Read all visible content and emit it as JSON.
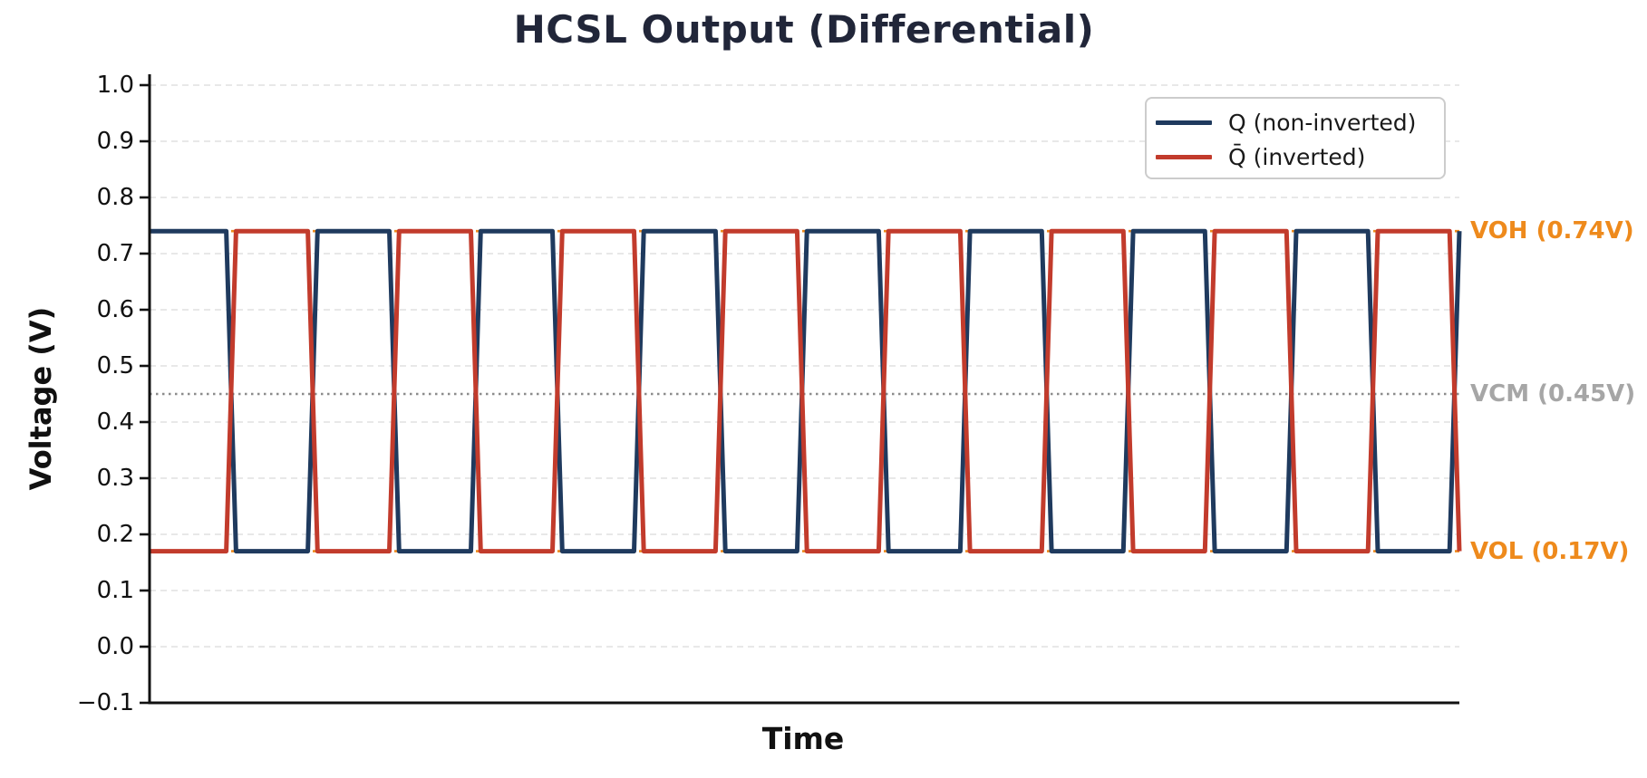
{
  "chart_data": {
    "type": "line",
    "title": "HCSL Output (Differential)",
    "xlabel": "Time",
    "ylabel": "Voltage (V)",
    "ylim": [
      -0.1,
      1.0
    ],
    "xrange": [
      0,
      16.06
    ],
    "x_units": "half-periods (no x tick labels shown)",
    "grid": "horizontal light dashed lines at every 0.1 V",
    "legend_position": "upper right",
    "ytick_values": [
      1.0,
      0.9,
      0.8,
      0.7,
      0.6,
      0.5,
      0.4,
      0.3,
      0.2,
      0.1,
      0.0,
      -0.1
    ],
    "ytick_labels": [
      "1.0",
      "0.9",
      "0.8",
      "0.7",
      "0.6",
      "0.5",
      "0.4",
      "0.3",
      "0.2",
      "0.1",
      "0.0",
      "−0.1"
    ],
    "ygrid_values": [
      0.0,
      0.1,
      0.2,
      0.3,
      0.4,
      0.5,
      0.6,
      0.7,
      0.8,
      0.9,
      1.0
    ],
    "levels": {
      "VOH": 0.74,
      "VCM": 0.45,
      "VOL": 0.17
    },
    "cycles": 8,
    "reference_lines": [
      {
        "label": "VOH (0.74V)",
        "value": 0.74,
        "style": "dashed",
        "color": "#ee8a1c"
      },
      {
        "label": "VCM (0.45V)",
        "value": 0.45,
        "style": "dotted",
        "color": "#8c8c8c",
        "label_color": "#a6a6a6"
      },
      {
        "label": "VOL (0.17V)",
        "value": 0.17,
        "style": "dashed",
        "color": "#ee8a1c"
      }
    ],
    "series": [
      {
        "name": "Q (non-inverted)",
        "color": "#1f3a5e",
        "points": [
          [
            0,
            0.74
          ],
          [
            0.94,
            0.74
          ],
          [
            1.06,
            0.17
          ],
          [
            1.94,
            0.17
          ],
          [
            2.06,
            0.74
          ],
          [
            2.94,
            0.74
          ],
          [
            3.06,
            0.17
          ],
          [
            3.94,
            0.17
          ],
          [
            4.06,
            0.74
          ],
          [
            4.94,
            0.74
          ],
          [
            5.06,
            0.17
          ],
          [
            5.94,
            0.17
          ],
          [
            6.06,
            0.74
          ],
          [
            6.94,
            0.74
          ],
          [
            7.06,
            0.17
          ],
          [
            7.94,
            0.17
          ],
          [
            8.06,
            0.74
          ],
          [
            8.94,
            0.74
          ],
          [
            9.06,
            0.17
          ],
          [
            9.94,
            0.17
          ],
          [
            10.06,
            0.74
          ],
          [
            10.94,
            0.74
          ],
          [
            11.06,
            0.17
          ],
          [
            11.94,
            0.17
          ],
          [
            12.06,
            0.74
          ],
          [
            12.94,
            0.74
          ],
          [
            13.06,
            0.17
          ],
          [
            13.94,
            0.17
          ],
          [
            14.06,
            0.74
          ],
          [
            14.94,
            0.74
          ],
          [
            15.06,
            0.17
          ],
          [
            15.94,
            0.17
          ],
          [
            16.06,
            0.74
          ]
        ]
      },
      {
        "name": "Q̄ (inverted)",
        "color": "#c23b2c",
        "points": [
          [
            0,
            0.17
          ],
          [
            0.94,
            0.17
          ],
          [
            1.06,
            0.74
          ],
          [
            1.94,
            0.74
          ],
          [
            2.06,
            0.17
          ],
          [
            2.94,
            0.17
          ],
          [
            3.06,
            0.74
          ],
          [
            3.94,
            0.74
          ],
          [
            4.06,
            0.17
          ],
          [
            4.94,
            0.17
          ],
          [
            5.06,
            0.74
          ],
          [
            5.94,
            0.74
          ],
          [
            6.06,
            0.17
          ],
          [
            6.94,
            0.17
          ],
          [
            7.06,
            0.74
          ],
          [
            7.94,
            0.74
          ],
          [
            8.06,
            0.17
          ],
          [
            8.94,
            0.17
          ],
          [
            9.06,
            0.74
          ],
          [
            9.94,
            0.74
          ],
          [
            10.06,
            0.17
          ],
          [
            10.94,
            0.17
          ],
          [
            11.06,
            0.74
          ],
          [
            11.94,
            0.74
          ],
          [
            12.06,
            0.17
          ],
          [
            12.94,
            0.17
          ],
          [
            13.06,
            0.74
          ],
          [
            13.94,
            0.74
          ],
          [
            14.06,
            0.17
          ],
          [
            14.94,
            0.17
          ],
          [
            15.06,
            0.74
          ],
          [
            15.94,
            0.74
          ],
          [
            16.06,
            0.17
          ]
        ]
      }
    ]
  },
  "colors": {
    "axis": "#111111",
    "grid": "#e0e0e0",
    "title": "#212639",
    "annotation_orange": "#ee8a1c",
    "annotation_gray": "#a6a6a6",
    "legend_border": "#cccccc"
  }
}
